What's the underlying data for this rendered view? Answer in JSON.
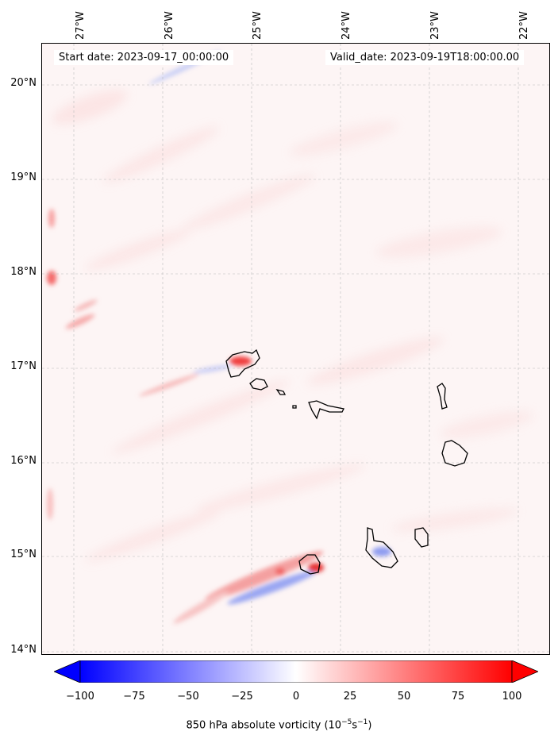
{
  "map": {
    "start_date": "Start date: 2023-09-17_00:00:00",
    "valid_date": "Valid_date: 2023-09-19T18:00:00.00",
    "lon_labels": [
      "27°W",
      "26°W",
      "25°W",
      "24°W",
      "23°W",
      "22°W"
    ],
    "lat_labels": [
      "20°N",
      "19°N",
      "18°N",
      "17°N",
      "16°N",
      "15°N",
      "14°N"
    ],
    "extent": {
      "lon_min": -27.35,
      "lon_max": -21.9,
      "lat_min": 13.95,
      "lat_max": 20.4
    },
    "gridlines": true
  },
  "colorbar": {
    "ticks": [
      "−100",
      "−75",
      "−50",
      "−25",
      "0",
      "25",
      "50",
      "75",
      "100"
    ],
    "min": -100,
    "max": 100,
    "colormap": "bwr",
    "extend": "both",
    "label_main": "850 hPa absolute vorticity (10",
    "label_exp1": "−5",
    "label_mid": "s",
    "label_exp2": "−1",
    "label_end": ")"
  },
  "colors": {
    "negative": "#0000ff",
    "neutral": "#ffffff",
    "positive": "#ff0000",
    "background": "#fdf5f5"
  }
}
